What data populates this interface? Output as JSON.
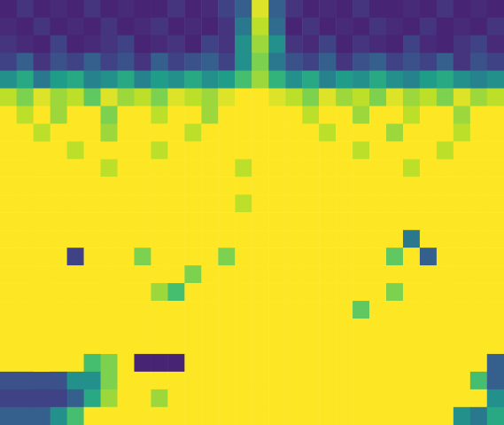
{
  "chart_data": {
    "type": "heatmap",
    "tick_labels": false,
    "zlim": [
      0,
      1
    ],
    "cells": [
      [
        0.1,
        0.15,
        0.1,
        0.12,
        0.1,
        0.15,
        0.1,
        0.12,
        0.1,
        0.1,
        0.15,
        0.1,
        0.12,
        0.2,
        0.3,
        0.95,
        0.3,
        0.15,
        0.1,
        0.12,
        0.1,
        0.15,
        0.1,
        0.1,
        0.12,
        0.1,
        0.15,
        0.1,
        0.12,
        0.1
      ],
      [
        0.12,
        0.1,
        0.15,
        0.1,
        0.12,
        0.1,
        0.15,
        0.1,
        0.12,
        0.15,
        0.1,
        0.12,
        0.1,
        0.15,
        0.4,
        0.9,
        0.35,
        0.1,
        0.15,
        0.1,
        0.12,
        0.1,
        0.15,
        0.12,
        0.1,
        0.15,
        0.1,
        0.12,
        0.1,
        0.15
      ],
      [
        0.15,
        0.12,
        0.1,
        0.2,
        0.1,
        0.12,
        0.15,
        0.2,
        0.1,
        0.12,
        0.15,
        0.1,
        0.2,
        0.15,
        0.5,
        0.85,
        0.5,
        0.15,
        0.12,
        0.2,
        0.1,
        0.15,
        0.12,
        0.1,
        0.2,
        0.12,
        0.1,
        0.15,
        0.2,
        0.12
      ],
      [
        0.2,
        0.3,
        0.15,
        0.25,
        0.2,
        0.3,
        0.2,
        0.25,
        0.15,
        0.3,
        0.2,
        0.25,
        0.3,
        0.2,
        0.5,
        0.8,
        0.4,
        0.25,
        0.2,
        0.3,
        0.15,
        0.25,
        0.3,
        0.2,
        0.25,
        0.2,
        0.3,
        0.15,
        0.25,
        0.2
      ],
      [
        0.5,
        0.6,
        0.4,
        0.55,
        0.6,
        0.45,
        0.5,
        0.6,
        0.45,
        0.55,
        0.5,
        0.6,
        0.5,
        0.55,
        0.7,
        0.85,
        0.65,
        0.5,
        0.6,
        0.45,
        0.55,
        0.5,
        0.6,
        0.5,
        0.45,
        0.55,
        0.6,
        0.5,
        0.45,
        0.5
      ],
      [
        0.9,
        0.8,
        0.95,
        0.85,
        0.9,
        0.75,
        0.95,
        0.85,
        0.9,
        0.8,
        0.95,
        0.9,
        0.85,
        0.95,
        1,
        1,
        0.95,
        0.9,
        0.8,
        0.95,
        0.85,
        0.9,
        0.8,
        0.95,
        0.85,
        0.9,
        0.8,
        0.95,
        0.85,
        0.9
      ],
      [
        1,
        0.9,
        1,
        0.85,
        1,
        1,
        0.8,
        1,
        1,
        0.9,
        1,
        1,
        0.85,
        1,
        1,
        1,
        1,
        1,
        0.9,
        1,
        1,
        0.85,
        1,
        1,
        0.9,
        1,
        1,
        0.85,
        1,
        1
      ],
      [
        1,
        1,
        0.9,
        1,
        1,
        1,
        0.85,
        1,
        1,
        1,
        1,
        0.9,
        1,
        1,
        1,
        1,
        1,
        1,
        1,
        0.9,
        1,
        1,
        1,
        0.85,
        1,
        1,
        1,
        0.9,
        1,
        1
      ],
      [
        1,
        1,
        1,
        1,
        0.9,
        1,
        1,
        1,
        1,
        0.9,
        1,
        1,
        1,
        1,
        1,
        1,
        1,
        1,
        1,
        1,
        1,
        0.9,
        1,
        1,
        1,
        1,
        0.9,
        1,
        1,
        1
      ],
      [
        1,
        1,
        1,
        1,
        1,
        1,
        0.9,
        1,
        1,
        1,
        1,
        1,
        1,
        1,
        0.9,
        1,
        1,
        1,
        1,
        1,
        1,
        1,
        1,
        1,
        0.9,
        1,
        1,
        1,
        1,
        1
      ],
      [
        1,
        1,
        1,
        1,
        1,
        1,
        1,
        1,
        1,
        1,
        1,
        1,
        1,
        1,
        1,
        1,
        1,
        1,
        1,
        1,
        1,
        1,
        1,
        1,
        1,
        1,
        1,
        1,
        1,
        1
      ],
      [
        1,
        1,
        1,
        1,
        1,
        1,
        1,
        1,
        1,
        1,
        1,
        1,
        1,
        1,
        0.9,
        1,
        1,
        1,
        1,
        1,
        1,
        1,
        1,
        1,
        1,
        1,
        1,
        1,
        1,
        1
      ],
      [
        1,
        1,
        1,
        1,
        1,
        1,
        1,
        1,
        1,
        1,
        1,
        1,
        1,
        1,
        1,
        1,
        1,
        1,
        1,
        1,
        1,
        1,
        1,
        1,
        1,
        1,
        1,
        1,
        1,
        1
      ],
      [
        1,
        1,
        1,
        1,
        1,
        1,
        1,
        1,
        1,
        1,
        1,
        1,
        1,
        1,
        1,
        1,
        1,
        1,
        1,
        1,
        1,
        1,
        1,
        1,
        0.4,
        1,
        1,
        1,
        1,
        1
      ],
      [
        1,
        1,
        1,
        1,
        0.2,
        1,
        1,
        1,
        0.8,
        1,
        1,
        1,
        1,
        0.8,
        1,
        1,
        1,
        1,
        1,
        1,
        1,
        1,
        1,
        0.75,
        1,
        0.3,
        1,
        1,
        1,
        1
      ],
      [
        1,
        1,
        1,
        1,
        1,
        1,
        1,
        1,
        1,
        1,
        1,
        0.8,
        1,
        1,
        1,
        1,
        1,
        1,
        1,
        1,
        1,
        1,
        1,
        1,
        1,
        1,
        1,
        1,
        1,
        1
      ],
      [
        1,
        1,
        1,
        1,
        1,
        1,
        1,
        1,
        1,
        0.85,
        0.7,
        1,
        1,
        1,
        1,
        1,
        1,
        1,
        1,
        1,
        1,
        1,
        1,
        0.8,
        1,
        1,
        1,
        1,
        1,
        1
      ],
      [
        1,
        1,
        1,
        1,
        1,
        1,
        1,
        1,
        1,
        1,
        1,
        1,
        1,
        1,
        1,
        1,
        1,
        1,
        1,
        1,
        1,
        0.75,
        1,
        1,
        1,
        1,
        1,
        1,
        1,
        1
      ],
      [
        1,
        1,
        1,
        1,
        1,
        1,
        1,
        1,
        1,
        1,
        1,
        1,
        1,
        1,
        1,
        1,
        1,
        1,
        1,
        1,
        1,
        1,
        1,
        1,
        1,
        1,
        1,
        1,
        1,
        1
      ],
      [
        1,
        1,
        1,
        1,
        1,
        1,
        1,
        1,
        1,
        1,
        1,
        1,
        1,
        1,
        1,
        1,
        1,
        1,
        1,
        1,
        1,
        1,
        1,
        1,
        1,
        1,
        1,
        1,
        1,
        1
      ],
      [
        1,
        1,
        1,
        1,
        1,
        0.7,
        0.8,
        1,
        0.1,
        0.1,
        0.1,
        1,
        1,
        1,
        1,
        1,
        1,
        1,
        1,
        1,
        1,
        1,
        1,
        1,
        1,
        1,
        1,
        1,
        1,
        0.3
      ],
      [
        0.25,
        0.25,
        0.25,
        0.25,
        0.5,
        0.5,
        0.8,
        1,
        1,
        1,
        1,
        1,
        1,
        1,
        1,
        1,
        1,
        1,
        1,
        1,
        1,
        1,
        1,
        1,
        1,
        1,
        1,
        1,
        0.7,
        0.3
      ],
      [
        0.2,
        0.2,
        0.2,
        0.2,
        0.3,
        0.6,
        0.85,
        1,
        1,
        0.85,
        1,
        1,
        1,
        1,
        1,
        1,
        1,
        1,
        1,
        1,
        1,
        1,
        1,
        1,
        1,
        1,
        1,
        1,
        1,
        0.5
      ],
      [
        0.3,
        0.3,
        0.3,
        0.5,
        0.7,
        1,
        1,
        1,
        1,
        1,
        1,
        1,
        1,
        1,
        1,
        1,
        1,
        1,
        1,
        1,
        1,
        1,
        1,
        1,
        1,
        1,
        1,
        0.5,
        0.4,
        0.6
      ]
    ]
  }
}
